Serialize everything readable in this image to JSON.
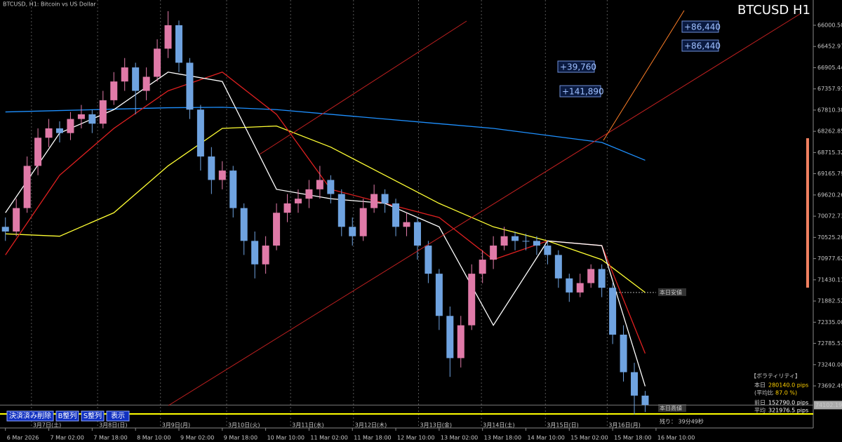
{
  "chart_data": {
    "type": "candlestick",
    "title": "BTCUSD H1",
    "subtitle": "BTCUSD, H1:  Bitcoin vs US Dollar",
    "ylim": [
      65462,
      74590
    ],
    "yticks": [
      73692.49,
      {
        "value": 73240,
        "label": "73240.00"
      },
      72785.51,
      {
        "value": 72335,
        "label": "72335.00"
      },
      71882.52,
      71430.11,
      70977.62,
      {
        "value": 70525.2,
        "label": "70525.20"
      },
      70072.73,
      69620.26,
      69165.79,
      68715.32,
      68262.85,
      67810.38,
      67357.91,
      66905.44,
      66452.97,
      {
        "value": 66000.5,
        "label": "66000.50"
      }
    ],
    "xlim": [
      -0.5,
      74.5
    ],
    "xticks": [
      {
        "value": 0,
        "label": "6 Mar 2026"
      },
      {
        "value": 4,
        "label": "7 Mar 02:00"
      },
      {
        "value": 8,
        "label": "7 Mar 18:00"
      },
      {
        "value": 12,
        "label": "8 Mar 10:00"
      },
      {
        "value": 16,
        "label": "9 Mar 02:00"
      },
      {
        "value": 20,
        "label": "9 Mar 18:00"
      },
      {
        "value": 24,
        "label": "10 Mar 10:00"
      },
      {
        "value": 28,
        "label": "11 Mar 02:00"
      },
      {
        "value": 32,
        "label": "11 Mar 18:00"
      },
      {
        "value": 36,
        "label": "12 Mar 10:00"
      },
      {
        "value": 40,
        "label": "13 Mar 02:00"
      },
      {
        "value": 44,
        "label": "13 Mar 18:00"
      },
      {
        "value": 48,
        "label": "14 Mar 10:00"
      },
      {
        "value": 52,
        "label": "15 Mar 02:00"
      },
      {
        "value": 56,
        "label": "15 Mar 18:00"
      },
      {
        "value": 60,
        "label": "16 Mar 10:00"
      }
    ],
    "day_labels": [
      {
        "value": 2.4,
        "label": "3月7日(土)"
      },
      {
        "value": 8.5,
        "label": "3月8日(日)"
      },
      {
        "value": 14.3,
        "label": "3月9日(月)"
      },
      {
        "value": 20.4,
        "label": "3月10日(火)"
      },
      {
        "value": 26.3,
        "label": "3月11日(水)"
      },
      {
        "value": 32.1,
        "label": "3月12日(木)"
      },
      {
        "value": 38.1,
        "label": "3月13日(金)"
      },
      {
        "value": 43.9,
        "label": "3月14日(土)"
      },
      {
        "value": 49.8,
        "label": "3月15日(日)"
      },
      {
        "value": 55.5,
        "label": "3月16日(月)"
      }
    ],
    "up_color": "#6fa3e0",
    "down_color": "#e07aa8",
    "open": [
      70300,
      70400,
      69900,
      69000,
      68400,
      68200,
      68300,
      68000,
      67900,
      68100,
      67600,
      67200,
      66900,
      67400,
      67100,
      66500,
      66000,
      66800,
      67800,
      68800,
      69300,
      69100,
      69900,
      70600,
      71100,
      70700,
      70000,
      69800,
      69700,
      69500,
      69300,
      69600,
      70300,
      70500,
      69900,
      69600,
      69800,
      70300,
      70200,
      70700,
      71300,
      72200,
      73100,
      72400,
      71300,
      71000,
      70700,
      70500,
      70600,
      70600,
      70700,
      70900,
      71400,
      71700,
      71500,
      71200,
      71600,
      72600,
      73400,
      73900
    ],
    "high": [
      70600,
      70500,
      70000,
      69200,
      68600,
      68500,
      68450,
      68200,
      68300,
      68200,
      67700,
      67400,
      67900,
      67600,
      67200,
      66700,
      67000,
      68000,
      69100,
      69600,
      69500,
      70100,
      70900,
      71400,
      71300,
      70800,
      70200,
      70000,
      69900,
      69700,
      69800,
      70500,
      70700,
      70600,
      70000,
      70000,
      70500,
      70500,
      71000,
      71500,
      72500,
      73500,
      73300,
      72500,
      71500,
      71200,
      70800,
      70800,
      70800,
      70900,
      71100,
      71600,
      71900,
      71800,
      71600,
      71800,
      72800,
      73600,
      74300,
      74250
    ],
    "low": [
      70100,
      69700,
      68800,
      68200,
      68000,
      68050,
      67850,
      67700,
      67800,
      67400,
      67000,
      66700,
      66800,
      66900,
      66300,
      65700,
      65900,
      66700,
      67700,
      68600,
      68900,
      69000,
      69800,
      70400,
      70500,
      69800,
      69600,
      69500,
      69300,
      69000,
      69200,
      69500,
      70100,
      69700,
      69400,
      69500,
      69700,
      70000,
      70100,
      70600,
      71200,
      72000,
      72200,
      71100,
      70800,
      70500,
      70300,
      70400,
      70450,
      70500,
      70600,
      70800,
      71300,
      71300,
      71100,
      71100,
      71500,
      72400,
      73200,
      73800
    ],
    "close": [
      70400,
      69900,
      69000,
      68400,
      68200,
      68300,
      68000,
      67900,
      68100,
      67600,
      67200,
      66900,
      67400,
      67100,
      66500,
      66000,
      66800,
      67800,
      68800,
      69300,
      69100,
      69900,
      70600,
      71100,
      70700,
      70000,
      69800,
      69700,
      69500,
      69300,
      69600,
      70300,
      70500,
      69900,
      69600,
      69800,
      70300,
      70200,
      70700,
      71300,
      72200,
      73100,
      72400,
      71300,
      71000,
      70700,
      70500,
      70600,
      70600,
      70700,
      70900,
      71400,
      71700,
      71500,
      71200,
      71600,
      72600,
      73400,
      73900,
      74100
    ],
    "series": [
      {
        "color": "#ffff33",
        "x": [
          0,
          5,
          10,
          15,
          20,
          25,
          30,
          35,
          40,
          45,
          50,
          55,
          59
        ],
        "values": [
          70450,
          70500,
          70000,
          69000,
          68200,
          68150,
          68600,
          69200,
          69800,
          70300,
          70600,
          71000,
          71700
        ]
      },
      {
        "color": "#1e90ff",
        "x": [
          0,
          5,
          10,
          15,
          20,
          25,
          30,
          35,
          40,
          45,
          50,
          55,
          59
        ],
        "values": [
          67850,
          67820,
          67790,
          67760,
          67750,
          67800,
          67900,
          68000,
          68100,
          68200,
          68350,
          68500,
          68880
        ]
      },
      {
        "color": "#e02020",
        "x": [
          0,
          5,
          10,
          15,
          20,
          25,
          30,
          35,
          40,
          45,
          50,
          55,
          59
        ],
        "values": [
          70900,
          69200,
          68200,
          67400,
          67000,
          67900,
          69500,
          69800,
          70100,
          71000,
          70600,
          70700,
          73000
        ]
      },
      {
        "color": "#ffffff",
        "x": [
          0,
          5,
          10,
          15,
          20,
          25,
          30,
          35,
          40,
          45,
          50,
          55,
          59
        ],
        "values": [
          70000,
          68300,
          67800,
          67000,
          67200,
          69500,
          69700,
          69800,
          70300,
          72400,
          70600,
          70700,
          73700
        ]
      }
    ],
    "current_price": 74102.19,
    "day_high": 74290,
    "day_high_label": "本日高値",
    "day_low": 71700,
    "day_low_label": "本日安値",
    "annotations": [
      "+86,440",
      "+86,440",
      "+39,760",
      "+141,890"
    ],
    "buttons": [
      "決済済み削除",
      "B整列",
      "S整列",
      "表示"
    ],
    "volatility": {
      "title": "【ボラティリティ】",
      "today": "本日",
      "today_value": "280140.0 pips",
      "ratio_label": "(平均比",
      "ratio_value": "87.0 %)",
      "prev": "前日",
      "prev_value": "152790.0 pips",
      "avg": "平均",
      "avg_value": "321976.5 pips",
      "remaining": "残り： 39分49秒"
    }
  }
}
